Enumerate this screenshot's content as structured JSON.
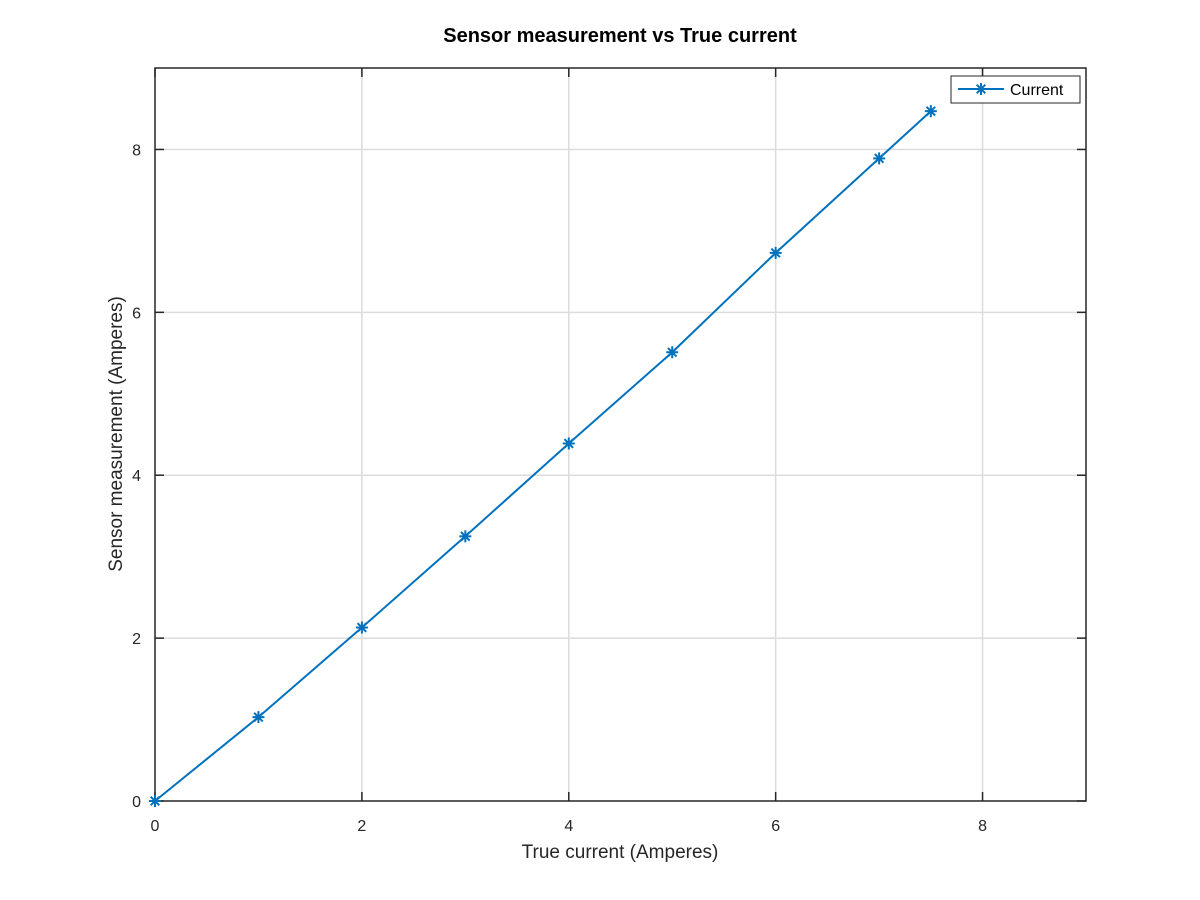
{
  "chart_data": {
    "type": "line",
    "title": "Sensor measurement vs True current",
    "xlabel": "True current (Amperes)",
    "ylabel": "Sensor measurement (Amperes)",
    "xlim": [
      0,
      9
    ],
    "ylim": [
      0,
      9
    ],
    "xticks": [
      0,
      2,
      4,
      6,
      8
    ],
    "yticks": [
      0,
      2,
      4,
      6,
      8
    ],
    "grid": true,
    "legend_position": "top-right",
    "marker": "asterisk",
    "series": [
      {
        "name": "Current",
        "color": "#0072BD",
        "x": [
          0,
          1,
          2,
          3,
          4,
          5,
          6,
          7,
          7.5
        ],
        "y": [
          0,
          1.03,
          2.13,
          3.25,
          4.39,
          5.51,
          6.73,
          7.89,
          8.47
        ]
      }
    ]
  }
}
